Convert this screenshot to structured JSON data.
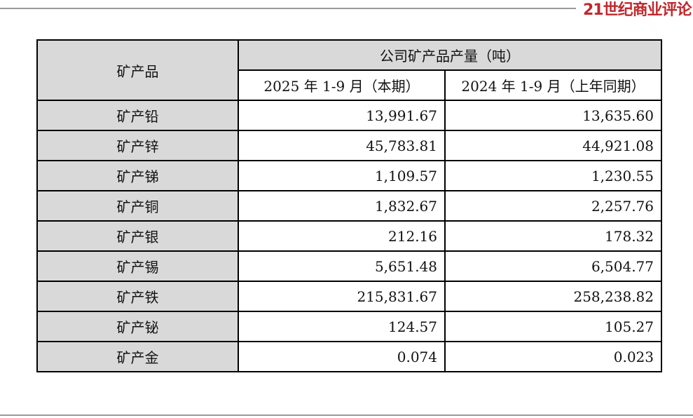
{
  "logo": "21世纪商业评论",
  "table": {
    "header": {
      "product": "矿产品",
      "group": "公司矿产品产量（吨）",
      "columns": [
        "2025 年 1-9 月（本期）",
        "2024 年 1-9 月（上年同期）"
      ]
    },
    "rows": [
      [
        "矿产铅",
        "13,991.67",
        "13,635.60"
      ],
      [
        "矿产锌",
        "45,783.81",
        "44,921.08"
      ],
      [
        "矿产锑",
        "1,109.57",
        "1,230.55"
      ],
      [
        "矿产铜",
        "1,832.67",
        "2,257.76"
      ],
      [
        "矿产银",
        "212.16",
        "178.32"
      ],
      [
        "矿产锡",
        "5,651.48",
        "6,504.77"
      ],
      [
        "矿产铁",
        "215,831.67",
        "258,238.82"
      ],
      [
        "矿产铋",
        "124.57",
        "105.27"
      ],
      [
        "矿产金",
        "0.074",
        "0.023"
      ]
    ]
  }
}
